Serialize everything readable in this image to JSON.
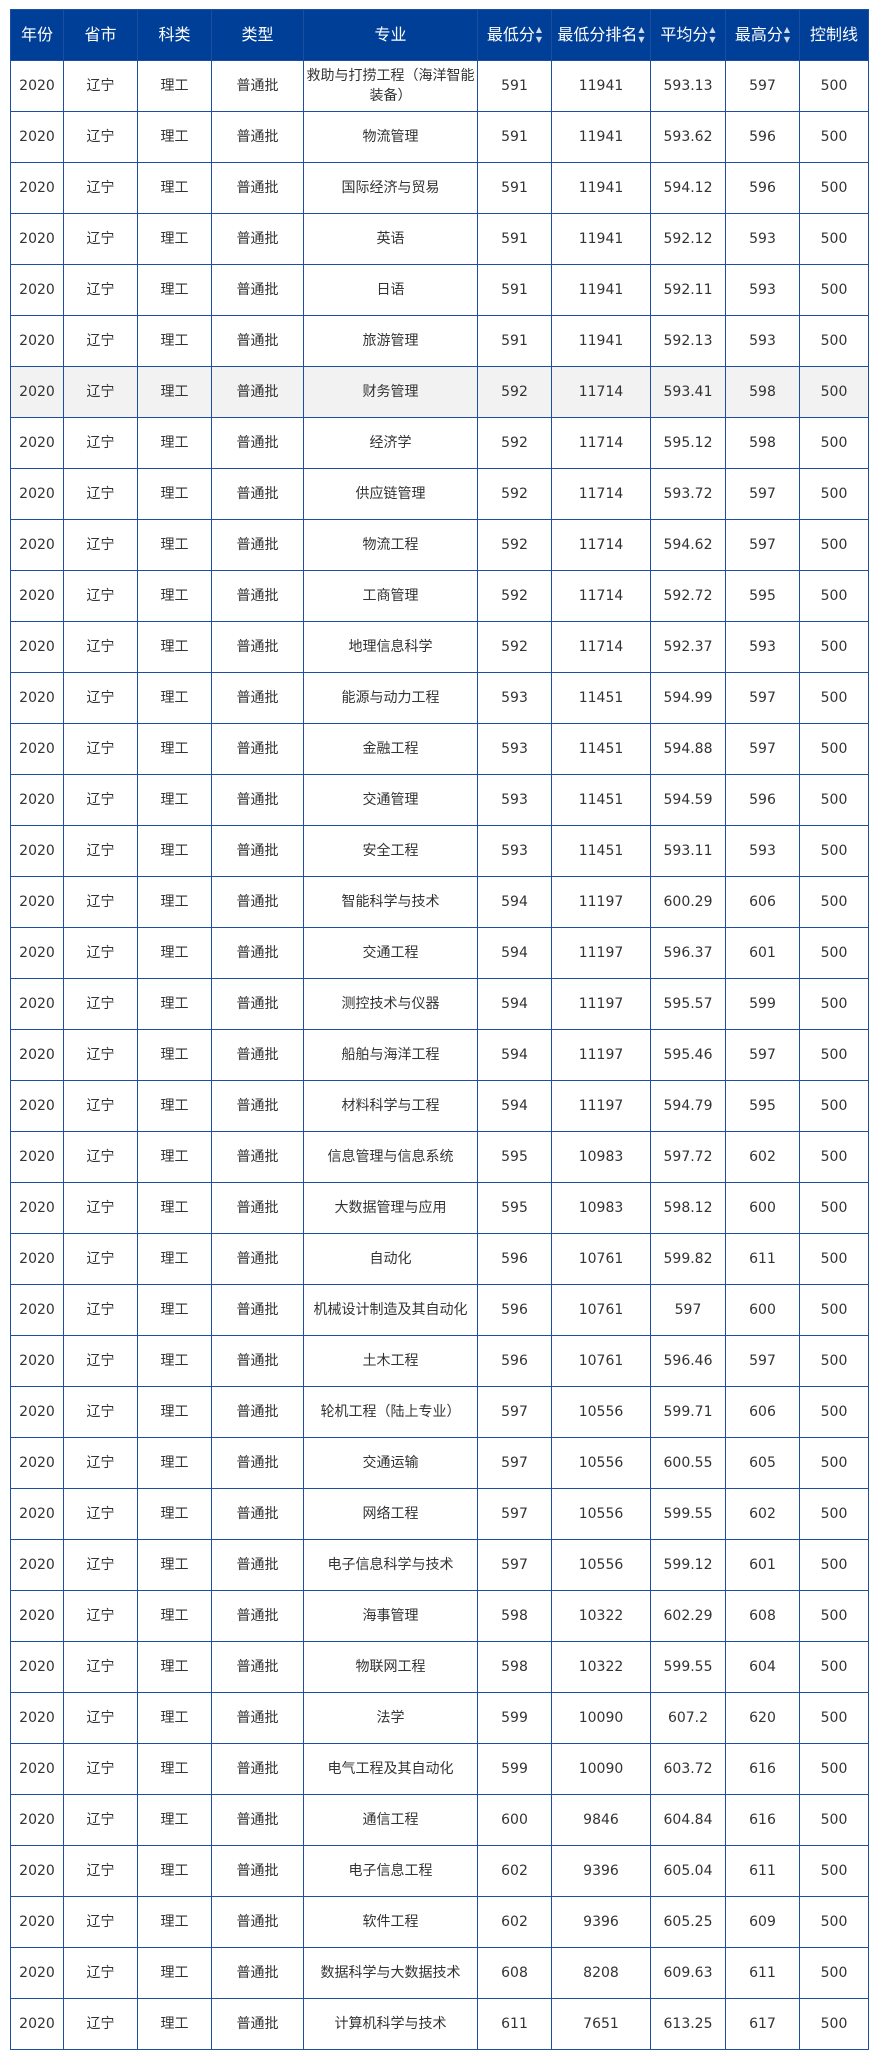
{
  "colors": {
    "header_bg": "#003f97",
    "border": "#1c4f9f",
    "highlight_row": "#f2f2f2"
  },
  "headers": [
    {
      "label": "年份",
      "sortable": false
    },
    {
      "label": "省市",
      "sortable": false
    },
    {
      "label": "科类",
      "sortable": false
    },
    {
      "label": "类型",
      "sortable": false
    },
    {
      "label": "专业",
      "sortable": false
    },
    {
      "label": "最低分",
      "sortable": true
    },
    {
      "label": "最低分排名",
      "sortable": true
    },
    {
      "label": "平均分",
      "sortable": true
    },
    {
      "label": "最高分",
      "sortable": true
    },
    {
      "label": "控制线",
      "sortable": false
    }
  ],
  "highlighted_row": 6,
  "rows": [
    [
      "2020",
      "辽宁",
      "理工",
      "普通批",
      "救助与打捞工程（海洋智能装备）",
      "591",
      "11941",
      "593.13",
      "597",
      "500"
    ],
    [
      "2020",
      "辽宁",
      "理工",
      "普通批",
      "物流管理",
      "591",
      "11941",
      "593.62",
      "596",
      "500"
    ],
    [
      "2020",
      "辽宁",
      "理工",
      "普通批",
      "国际经济与贸易",
      "591",
      "11941",
      "594.12",
      "596",
      "500"
    ],
    [
      "2020",
      "辽宁",
      "理工",
      "普通批",
      "英语",
      "591",
      "11941",
      "592.12",
      "593",
      "500"
    ],
    [
      "2020",
      "辽宁",
      "理工",
      "普通批",
      "日语",
      "591",
      "11941",
      "592.11",
      "593",
      "500"
    ],
    [
      "2020",
      "辽宁",
      "理工",
      "普通批",
      "旅游管理",
      "591",
      "11941",
      "592.13",
      "593",
      "500"
    ],
    [
      "2020",
      "辽宁",
      "理工",
      "普通批",
      "财务管理",
      "592",
      "11714",
      "593.41",
      "598",
      "500"
    ],
    [
      "2020",
      "辽宁",
      "理工",
      "普通批",
      "经济学",
      "592",
      "11714",
      "595.12",
      "598",
      "500"
    ],
    [
      "2020",
      "辽宁",
      "理工",
      "普通批",
      "供应链管理",
      "592",
      "11714",
      "593.72",
      "597",
      "500"
    ],
    [
      "2020",
      "辽宁",
      "理工",
      "普通批",
      "物流工程",
      "592",
      "11714",
      "594.62",
      "597",
      "500"
    ],
    [
      "2020",
      "辽宁",
      "理工",
      "普通批",
      "工商管理",
      "592",
      "11714",
      "592.72",
      "595",
      "500"
    ],
    [
      "2020",
      "辽宁",
      "理工",
      "普通批",
      "地理信息科学",
      "592",
      "11714",
      "592.37",
      "593",
      "500"
    ],
    [
      "2020",
      "辽宁",
      "理工",
      "普通批",
      "能源与动力工程",
      "593",
      "11451",
      "594.99",
      "597",
      "500"
    ],
    [
      "2020",
      "辽宁",
      "理工",
      "普通批",
      "金融工程",
      "593",
      "11451",
      "594.88",
      "597",
      "500"
    ],
    [
      "2020",
      "辽宁",
      "理工",
      "普通批",
      "交通管理",
      "593",
      "11451",
      "594.59",
      "596",
      "500"
    ],
    [
      "2020",
      "辽宁",
      "理工",
      "普通批",
      "安全工程",
      "593",
      "11451",
      "593.11",
      "593",
      "500"
    ],
    [
      "2020",
      "辽宁",
      "理工",
      "普通批",
      "智能科学与技术",
      "594",
      "11197",
      "600.29",
      "606",
      "500"
    ],
    [
      "2020",
      "辽宁",
      "理工",
      "普通批",
      "交通工程",
      "594",
      "11197",
      "596.37",
      "601",
      "500"
    ],
    [
      "2020",
      "辽宁",
      "理工",
      "普通批",
      "测控技术与仪器",
      "594",
      "11197",
      "595.57",
      "599",
      "500"
    ],
    [
      "2020",
      "辽宁",
      "理工",
      "普通批",
      "船舶与海洋工程",
      "594",
      "11197",
      "595.46",
      "597",
      "500"
    ],
    [
      "2020",
      "辽宁",
      "理工",
      "普通批",
      "材料科学与工程",
      "594",
      "11197",
      "594.79",
      "595",
      "500"
    ],
    [
      "2020",
      "辽宁",
      "理工",
      "普通批",
      "信息管理与信息系统",
      "595",
      "10983",
      "597.72",
      "602",
      "500"
    ],
    [
      "2020",
      "辽宁",
      "理工",
      "普通批",
      "大数据管理与应用",
      "595",
      "10983",
      "598.12",
      "600",
      "500"
    ],
    [
      "2020",
      "辽宁",
      "理工",
      "普通批",
      "自动化",
      "596",
      "10761",
      "599.82",
      "611",
      "500"
    ],
    [
      "2020",
      "辽宁",
      "理工",
      "普通批",
      "机械设计制造及其自动化",
      "596",
      "10761",
      "597",
      "600",
      "500"
    ],
    [
      "2020",
      "辽宁",
      "理工",
      "普通批",
      "土木工程",
      "596",
      "10761",
      "596.46",
      "597",
      "500"
    ],
    [
      "2020",
      "辽宁",
      "理工",
      "普通批",
      "轮机工程（陆上专业）",
      "597",
      "10556",
      "599.71",
      "606",
      "500"
    ],
    [
      "2020",
      "辽宁",
      "理工",
      "普通批",
      "交通运输",
      "597",
      "10556",
      "600.55",
      "605",
      "500"
    ],
    [
      "2020",
      "辽宁",
      "理工",
      "普通批",
      "网络工程",
      "597",
      "10556",
      "599.55",
      "602",
      "500"
    ],
    [
      "2020",
      "辽宁",
      "理工",
      "普通批",
      "电子信息科学与技术",
      "597",
      "10556",
      "599.12",
      "601",
      "500"
    ],
    [
      "2020",
      "辽宁",
      "理工",
      "普通批",
      "海事管理",
      "598",
      "10322",
      "602.29",
      "608",
      "500"
    ],
    [
      "2020",
      "辽宁",
      "理工",
      "普通批",
      "物联网工程",
      "598",
      "10322",
      "599.55",
      "604",
      "500"
    ],
    [
      "2020",
      "辽宁",
      "理工",
      "普通批",
      "法学",
      "599",
      "10090",
      "607.2",
      "620",
      "500"
    ],
    [
      "2020",
      "辽宁",
      "理工",
      "普通批",
      "电气工程及其自动化",
      "599",
      "10090",
      "603.72",
      "616",
      "500"
    ],
    [
      "2020",
      "辽宁",
      "理工",
      "普通批",
      "通信工程",
      "600",
      "9846",
      "604.84",
      "616",
      "500"
    ],
    [
      "2020",
      "辽宁",
      "理工",
      "普通批",
      "电子信息工程",
      "602",
      "9396",
      "605.04",
      "611",
      "500"
    ],
    [
      "2020",
      "辽宁",
      "理工",
      "普通批",
      "软件工程",
      "602",
      "9396",
      "605.25",
      "609",
      "500"
    ],
    [
      "2020",
      "辽宁",
      "理工",
      "普通批",
      "数据科学与大数据技术",
      "608",
      "8208",
      "609.63",
      "611",
      "500"
    ],
    [
      "2020",
      "辽宁",
      "理工",
      "普通批",
      "计算机科学与技术",
      "611",
      "7651",
      "613.25",
      "617",
      "500"
    ]
  ]
}
